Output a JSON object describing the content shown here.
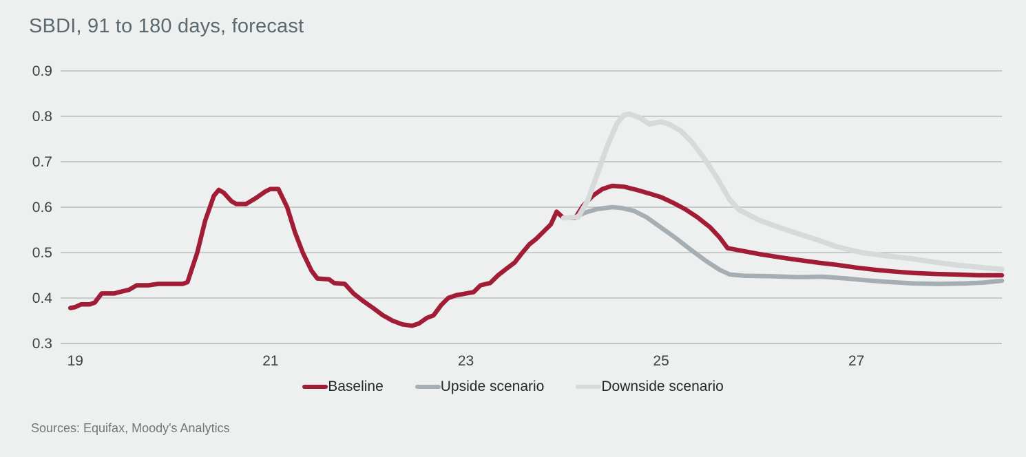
{
  "header": {
    "title": "SBDI, 91 to 180 days, forecast"
  },
  "footer": {
    "sources": "Sources: Equifax, Moody's Analytics"
  },
  "colors": {
    "background": "#eeefef",
    "grid": "#b1b4b6",
    "axis_line": "#a4a7a9",
    "axis_labels": "#3b4045",
    "title": "#5c6870",
    "sources": "#73767a",
    "legend_text": "#26282a",
    "baseline": "#a01d35",
    "upside": "#a5aeb2",
    "downside": "#d7dadb"
  },
  "chart_data": {
    "type": "line",
    "title": "SBDI, 91 to 180 days, forecast",
    "xlabel": "",
    "ylabel": "",
    "xlim": [
      18.85,
      28.49
    ],
    "ylim": [
      0.3,
      0.9
    ],
    "xticks": {
      "values": [
        19,
        21,
        23,
        25,
        27
      ],
      "labels": [
        "19",
        "21",
        "23",
        "25",
        "27"
      ]
    },
    "yticks": {
      "values": [
        0.3,
        0.4,
        0.5,
        0.6,
        0.7,
        0.8,
        0.9
      ],
      "labels": [
        "0.3",
        "0.4",
        "0.5",
        "0.6",
        "0.7",
        "0.8",
        "0.9"
      ]
    },
    "grid": "horizontal",
    "legend_position": "bottom",
    "annotations": [],
    "series": [
      {
        "name": "Baseline",
        "color": "#a01d35",
        "width": 6.5,
        "points": [
          [
            18.95,
            0.378
          ],
          [
            19.0,
            0.38
          ],
          [
            19.06,
            0.386
          ],
          [
            19.15,
            0.386
          ],
          [
            19.2,
            0.39
          ],
          [
            19.27,
            0.41
          ],
          [
            19.4,
            0.41
          ],
          [
            19.45,
            0.413
          ],
          [
            19.55,
            0.418
          ],
          [
            19.63,
            0.428
          ],
          [
            19.75,
            0.428
          ],
          [
            19.85,
            0.431
          ],
          [
            20.1,
            0.431
          ],
          [
            20.15,
            0.435
          ],
          [
            20.25,
            0.5
          ],
          [
            20.33,
            0.57
          ],
          [
            20.42,
            0.625
          ],
          [
            20.47,
            0.638
          ],
          [
            20.52,
            0.632
          ],
          [
            20.6,
            0.613
          ],
          [
            20.65,
            0.607
          ],
          [
            20.75,
            0.607
          ],
          [
            20.85,
            0.62
          ],
          [
            20.95,
            0.635
          ],
          [
            21.0,
            0.64
          ],
          [
            21.08,
            0.64
          ],
          [
            21.17,
            0.6
          ],
          [
            21.25,
            0.545
          ],
          [
            21.33,
            0.5
          ],
          [
            21.42,
            0.46
          ],
          [
            21.48,
            0.443
          ],
          [
            21.6,
            0.441
          ],
          [
            21.65,
            0.433
          ],
          [
            21.76,
            0.431
          ],
          [
            21.85,
            0.41
          ],
          [
            21.95,
            0.393
          ],
          [
            22.05,
            0.378
          ],
          [
            22.15,
            0.362
          ],
          [
            22.25,
            0.35
          ],
          [
            22.35,
            0.342
          ],
          [
            22.45,
            0.339
          ],
          [
            22.52,
            0.344
          ],
          [
            22.6,
            0.356
          ],
          [
            22.67,
            0.362
          ],
          [
            22.75,
            0.385
          ],
          [
            22.82,
            0.4
          ],
          [
            22.9,
            0.406
          ],
          [
            23.0,
            0.41
          ],
          [
            23.08,
            0.413
          ],
          [
            23.15,
            0.428
          ],
          [
            23.25,
            0.433
          ],
          [
            23.33,
            0.45
          ],
          [
            23.42,
            0.465
          ],
          [
            23.5,
            0.478
          ],
          [
            23.58,
            0.5
          ],
          [
            23.65,
            0.518
          ],
          [
            23.72,
            0.53
          ],
          [
            23.8,
            0.547
          ],
          [
            23.87,
            0.562
          ],
          [
            23.93,
            0.59
          ],
          [
            24.0,
            0.576
          ],
          [
            24.12,
            0.576
          ],
          [
            24.2,
            0.603
          ],
          [
            24.3,
            0.625
          ],
          [
            24.4,
            0.64
          ],
          [
            24.5,
            0.647
          ],
          [
            24.62,
            0.645
          ],
          [
            24.75,
            0.638
          ],
          [
            24.88,
            0.63
          ],
          [
            25.0,
            0.622
          ],
          [
            25.12,
            0.61
          ],
          [
            25.25,
            0.595
          ],
          [
            25.37,
            0.578
          ],
          [
            25.5,
            0.556
          ],
          [
            25.6,
            0.533
          ],
          [
            25.68,
            0.51
          ],
          [
            25.8,
            0.505
          ],
          [
            26.0,
            0.497
          ],
          [
            26.2,
            0.49
          ],
          [
            26.4,
            0.484
          ],
          [
            26.6,
            0.478
          ],
          [
            26.8,
            0.473
          ],
          [
            27.0,
            0.467
          ],
          [
            27.2,
            0.462
          ],
          [
            27.4,
            0.458
          ],
          [
            27.6,
            0.455
          ],
          [
            27.8,
            0.453
          ],
          [
            28.0,
            0.452
          ],
          [
            28.25,
            0.45
          ],
          [
            28.49,
            0.45
          ]
        ]
      },
      {
        "name": "Upside scenario",
        "color": "#a5aeb2",
        "width": 6.5,
        "points": [
          [
            24.0,
            0.576
          ],
          [
            24.12,
            0.578
          ],
          [
            24.22,
            0.588
          ],
          [
            24.35,
            0.596
          ],
          [
            24.5,
            0.6
          ],
          [
            24.6,
            0.598
          ],
          [
            24.72,
            0.592
          ],
          [
            24.85,
            0.578
          ],
          [
            25.0,
            0.555
          ],
          [
            25.15,
            0.532
          ],
          [
            25.3,
            0.507
          ],
          [
            25.45,
            0.483
          ],
          [
            25.6,
            0.462
          ],
          [
            25.7,
            0.452
          ],
          [
            25.85,
            0.449
          ],
          [
            26.1,
            0.448
          ],
          [
            26.4,
            0.446
          ],
          [
            26.65,
            0.447
          ],
          [
            26.9,
            0.443
          ],
          [
            27.1,
            0.439
          ],
          [
            27.35,
            0.435
          ],
          [
            27.6,
            0.432
          ],
          [
            27.85,
            0.431
          ],
          [
            28.1,
            0.432
          ],
          [
            28.3,
            0.434
          ],
          [
            28.49,
            0.438
          ]
        ]
      },
      {
        "name": "Downside scenario",
        "color": "#d7dadb",
        "width": 7.5,
        "points": [
          [
            24.0,
            0.576
          ],
          [
            24.15,
            0.578
          ],
          [
            24.25,
            0.615
          ],
          [
            24.35,
            0.675
          ],
          [
            24.45,
            0.735
          ],
          [
            24.55,
            0.785
          ],
          [
            24.62,
            0.803
          ],
          [
            24.68,
            0.805
          ],
          [
            24.78,
            0.797
          ],
          [
            24.88,
            0.783
          ],
          [
            25.0,
            0.788
          ],
          [
            25.08,
            0.783
          ],
          [
            25.2,
            0.768
          ],
          [
            25.32,
            0.742
          ],
          [
            25.45,
            0.705
          ],
          [
            25.58,
            0.662
          ],
          [
            25.7,
            0.617
          ],
          [
            25.8,
            0.594
          ],
          [
            26.0,
            0.572
          ],
          [
            26.2,
            0.556
          ],
          [
            26.4,
            0.542
          ],
          [
            26.6,
            0.528
          ],
          [
            26.8,
            0.513
          ],
          [
            27.05,
            0.5
          ],
          [
            27.3,
            0.493
          ],
          [
            27.55,
            0.487
          ],
          [
            27.8,
            0.479
          ],
          [
            28.05,
            0.472
          ],
          [
            28.3,
            0.467
          ],
          [
            28.49,
            0.463
          ]
        ]
      }
    ]
  }
}
